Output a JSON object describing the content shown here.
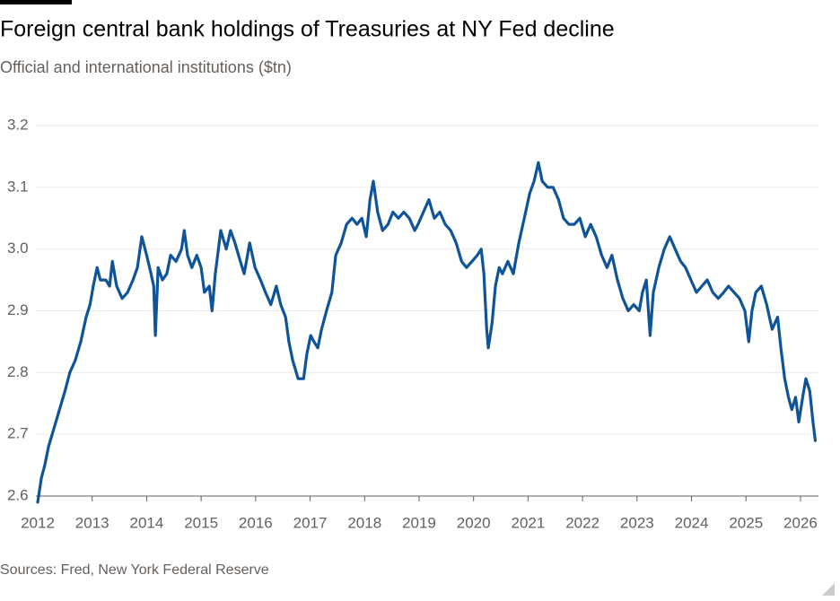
{
  "chart_data": {
    "type": "line",
    "title": "Foreign central bank holdings of Treasuries at NY Fed decline",
    "subtitle": "Official and international institutions ($tn)",
    "source": "Sources: Fred, New York Federal Reserve",
    "xlim": [
      2012,
      2026.33
    ],
    "xticks": [
      2012,
      2013,
      2014,
      2015,
      2016,
      2017,
      2018,
      2019,
      2020,
      2021,
      2022,
      2023,
      2024,
      2025,
      2026
    ],
    "ylim": [
      2.6,
      3.2
    ],
    "yticks": [
      2.6,
      2.7,
      2.8,
      2.9,
      {
        "value": 3,
        "label": "3.0"
      },
      3.1,
      3.2
    ],
    "grid": true,
    "x": [
      2012.0,
      2012.07,
      2012.13,
      2012.2,
      2012.3,
      2012.4,
      2012.5,
      2012.59,
      2012.69,
      2012.79,
      2012.89,
      2012.96,
      2013.02,
      2013.09,
      2013.15,
      2013.25,
      2013.32,
      2013.37,
      2013.45,
      2013.55,
      2013.65,
      2013.75,
      2013.83,
      2013.91,
      2014.0,
      2014.08,
      2014.13,
      2014.16,
      2014.21,
      2014.29,
      2014.37,
      2014.44,
      2014.54,
      2014.64,
      2014.69,
      2014.75,
      2014.83,
      2014.92,
      2015.0,
      2015.06,
      2015.15,
      2015.2,
      2015.26,
      2015.36,
      2015.46,
      2015.54,
      2015.62,
      2015.72,
      2015.79,
      2015.89,
      2015.99,
      2016.09,
      2016.18,
      2016.28,
      2016.38,
      2016.46,
      2016.55,
      2016.61,
      2016.68,
      2016.78,
      2016.88,
      2016.94,
      2017.01,
      2017.07,
      2017.14,
      2017.21,
      2017.3,
      2017.4,
      2017.47,
      2017.57,
      2017.67,
      2017.77,
      2017.86,
      2017.95,
      2018.03,
      2018.1,
      2018.16,
      2018.24,
      2018.33,
      2018.43,
      2018.52,
      2018.62,
      2018.72,
      2018.82,
      2018.92,
      2018.98,
      2019.08,
      2019.18,
      2019.28,
      2019.38,
      2019.48,
      2019.58,
      2019.68,
      2019.78,
      2019.87,
      2019.97,
      2020.07,
      2020.14,
      2020.19,
      2020.24,
      2020.27,
      2020.34,
      2020.4,
      2020.47,
      2020.53,
      2020.63,
      2020.73,
      2020.83,
      2020.93,
      2021.03,
      2021.11,
      2021.19,
      2021.26,
      2021.36,
      2021.46,
      2021.56,
      2021.65,
      2021.75,
      2021.85,
      2021.95,
      2022.05,
      2022.15,
      2022.25,
      2022.35,
      2022.45,
      2022.54,
      2022.64,
      2022.74,
      2022.84,
      2022.94,
      2023.04,
      2023.1,
      2023.17,
      2023.24,
      2023.3,
      2023.4,
      2023.5,
      2023.6,
      2023.7,
      2023.8,
      2023.89,
      2023.99,
      2024.09,
      2024.19,
      2024.29,
      2024.39,
      2024.49,
      2024.59,
      2024.68,
      2024.78,
      2024.88,
      2024.98,
      2025.05,
      2025.11,
      2025.18,
      2025.28,
      2025.38,
      2025.48,
      2025.58,
      2025.64,
      2025.71,
      2025.78,
      2025.84,
      2025.91,
      2025.97,
      2026.04,
      2026.1,
      2026.17,
      2026.23,
      2026.27
    ],
    "series": [
      {
        "color": "#0f5499",
        "values": [
          2.59,
          2.63,
          2.65,
          2.68,
          2.71,
          2.74,
          2.77,
          2.8,
          2.82,
          2.85,
          2.89,
          2.91,
          2.94,
          2.97,
          2.95,
          2.95,
          2.94,
          2.98,
          2.94,
          2.92,
          2.93,
          2.95,
          2.97,
          3.02,
          2.99,
          2.96,
          2.94,
          2.86,
          2.97,
          2.95,
          2.96,
          2.99,
          2.98,
          3.0,
          3.03,
          2.99,
          2.97,
          2.99,
          2.97,
          2.93,
          2.94,
          2.9,
          2.96,
          3.03,
          3.0,
          3.03,
          3.01,
          2.98,
          2.96,
          3.01,
          2.97,
          2.95,
          2.93,
          2.91,
          2.94,
          2.91,
          2.89,
          2.85,
          2.82,
          2.79,
          2.79,
          2.83,
          2.86,
          2.85,
          2.84,
          2.87,
          2.9,
          2.93,
          2.99,
          3.01,
          3.04,
          3.05,
          3.04,
          3.05,
          3.02,
          3.08,
          3.11,
          3.06,
          3.03,
          3.04,
          3.06,
          3.05,
          3.06,
          3.05,
          3.03,
          3.04,
          3.06,
          3.08,
          3.05,
          3.06,
          3.04,
          3.03,
          3.01,
          2.98,
          2.97,
          2.98,
          2.99,
          3.0,
          2.96,
          2.87,
          2.84,
          2.88,
          2.94,
          2.97,
          2.96,
          2.98,
          2.96,
          3.01,
          3.05,
          3.09,
          3.11,
          3.14,
          3.11,
          3.1,
          3.1,
          3.08,
          3.05,
          3.04,
          3.04,
          3.05,
          3.02,
          3.04,
          3.02,
          2.99,
          2.97,
          2.99,
          2.95,
          2.92,
          2.9,
          2.91,
          2.9,
          2.93,
          2.95,
          2.86,
          2.93,
          2.97,
          3.0,
          3.02,
          3.0,
          2.98,
          2.97,
          2.95,
          2.93,
          2.94,
          2.95,
          2.93,
          2.92,
          2.93,
          2.94,
          2.93,
          2.92,
          2.9,
          2.85,
          2.9,
          2.93,
          2.94,
          2.91,
          2.87,
          2.89,
          2.84,
          2.79,
          2.76,
          2.74,
          2.76,
          2.72,
          2.76,
          2.79,
          2.77,
          2.72,
          2.69
        ]
      }
    ]
  }
}
